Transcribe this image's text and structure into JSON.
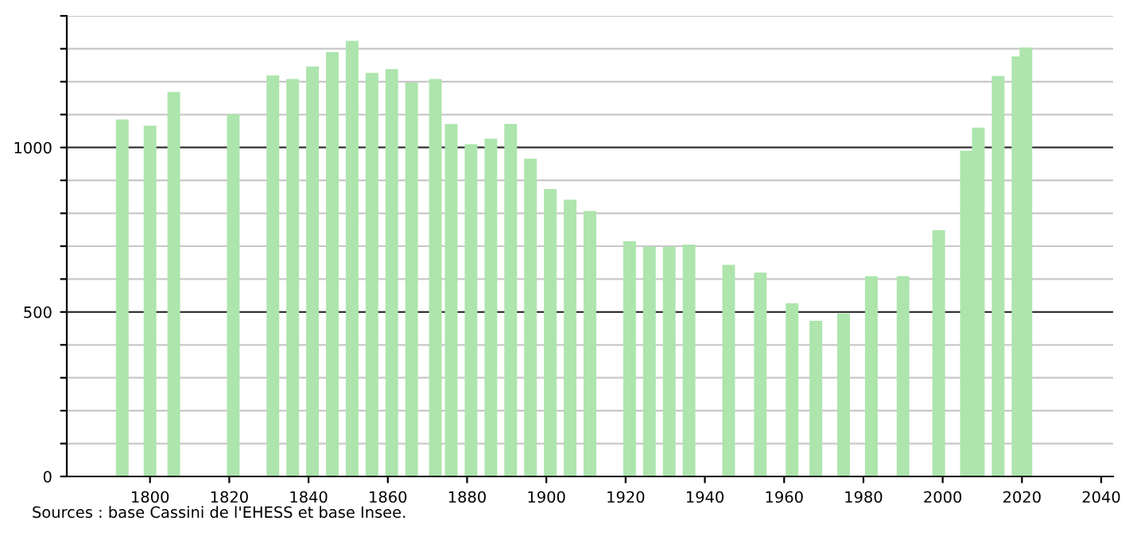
{
  "chart_data": {
    "type": "bar",
    "x": [
      1793,
      1800,
      1806,
      1821,
      1831,
      1836,
      1841,
      1846,
      1851,
      1856,
      1861,
      1866,
      1872,
      1876,
      1881,
      1886,
      1891,
      1896,
      1901,
      1906,
      1911,
      1921,
      1926,
      1931,
      1936,
      1946,
      1954,
      1962,
      1968,
      1975,
      1982,
      1990,
      1999,
      2006,
      2009,
      2014,
      2019,
      2021
    ],
    "values": [
      1085,
      1066,
      1169,
      1101,
      1219,
      1208,
      1246,
      1290,
      1324,
      1227,
      1238,
      1197,
      1208,
      1071,
      1010,
      1027,
      1072,
      966,
      874,
      841,
      807,
      715,
      699,
      699,
      705,
      643,
      620,
      527,
      473,
      496,
      609,
      609,
      749,
      990,
      1060,
      1217,
      1277,
      1304
    ],
    "color": "#ade5ad",
    "xlim": [
      1779,
      2043
    ],
    "xticks": [
      1800,
      1820,
      1840,
      1860,
      1880,
      1900,
      1920,
      1940,
      1960,
      1980,
      2000,
      2020,
      2040
    ],
    "ylim": [
      0,
      1400
    ],
    "yticks": [
      0,
      {
        "value": 100,
        "label": null
      },
      {
        "value": 200,
        "label": null
      },
      {
        "value": 300,
        "label": null
      },
      {
        "value": 400,
        "label": null
      },
      500,
      {
        "value": 600,
        "label": null
      },
      {
        "value": 700,
        "label": null
      },
      {
        "value": 800,
        "label": null
      },
      {
        "value": 900,
        "label": null
      },
      1000,
      {
        "value": 1100,
        "label": null
      },
      {
        "value": 1200,
        "label": null
      },
      {
        "value": 1300,
        "label": null
      },
      {
        "value": 1400,
        "label": null
      }
    ],
    "grid": "y",
    "annotations": [
      "Sources : base Cassini de l'EHESS et base Insee."
    ]
  }
}
